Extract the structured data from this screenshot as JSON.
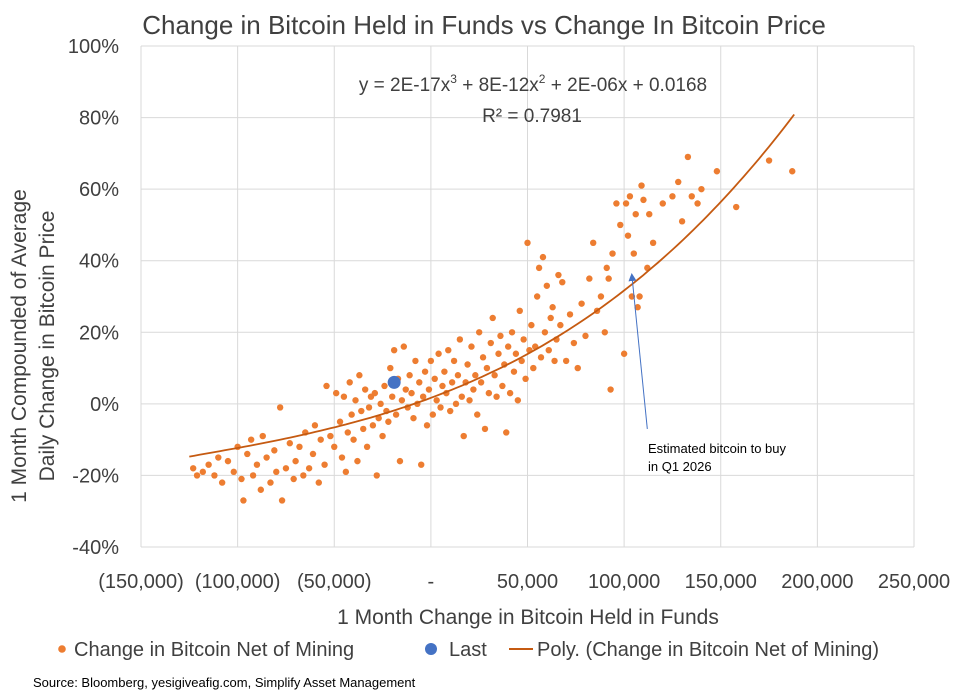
{
  "chart_data": {
    "type": "scatter",
    "title": "Change in Bitcoin Held in Funds vs Change In Bitcoin Price",
    "xlabel": "1 Month Change in Bitcoin Held in Funds",
    "ylabel_line1": "1 Month Compounded of Average",
    "ylabel_line2": "Daily Change in Bitcoin Price",
    "xlim": [
      -150000,
      250000
    ],
    "ylim": [
      -0.4,
      1.0
    ],
    "x_ticks": [
      {
        "value": -150000,
        "label": "(150,000)"
      },
      {
        "value": -100000,
        "label": "(100,000)"
      },
      {
        "value": -50000,
        "label": "(50,000)"
      },
      {
        "value": 0,
        "label": "-"
      },
      {
        "value": 50000,
        "label": "50,000"
      },
      {
        "value": 100000,
        "label": "100,000"
      },
      {
        "value": 150000,
        "label": "150,000"
      },
      {
        "value": 200000,
        "label": "200,000"
      },
      {
        "value": 250000,
        "label": "250,000"
      }
    ],
    "y_ticks": [
      {
        "value": -0.4,
        "label": "-40%"
      },
      {
        "value": -0.2,
        "label": "-20%"
      },
      {
        "value": 0.0,
        "label": "0%"
      },
      {
        "value": 0.2,
        "label": "20%"
      },
      {
        "value": 0.4,
        "label": "40%"
      },
      {
        "value": 0.6,
        "label": "60%"
      },
      {
        "value": 0.8,
        "label": "80%"
      },
      {
        "value": 1.0,
        "label": "100%"
      }
    ],
    "gridlines": true,
    "series": [
      {
        "name": "Change in Bitcoin Net of Mining",
        "color": "#ED7D31",
        "marker": "circle",
        "points": [
          [
            -123000,
            -0.18
          ],
          [
            -121000,
            -0.2
          ],
          [
            -118000,
            -0.19
          ],
          [
            -115000,
            -0.17
          ],
          [
            -112000,
            -0.2
          ],
          [
            -110000,
            -0.15
          ],
          [
            -108000,
            -0.22
          ],
          [
            -105000,
            -0.16
          ],
          [
            -102000,
            -0.19
          ],
          [
            -100000,
            -0.12
          ],
          [
            -98000,
            -0.21
          ],
          [
            -97000,
            -0.27
          ],
          [
            -95000,
            -0.14
          ],
          [
            -93000,
            -0.1
          ],
          [
            -92000,
            -0.2
          ],
          [
            -90000,
            -0.17
          ],
          [
            -88000,
            -0.24
          ],
          [
            -87000,
            -0.09
          ],
          [
            -85000,
            -0.15
          ],
          [
            -83000,
            -0.22
          ],
          [
            -81000,
            -0.13
          ],
          [
            -80000,
            -0.19
          ],
          [
            -78000,
            -0.01
          ],
          [
            -77000,
            -0.27
          ],
          [
            -75000,
            -0.18
          ],
          [
            -73000,
            -0.11
          ],
          [
            -71000,
            -0.21
          ],
          [
            -70000,
            -0.16
          ],
          [
            -68000,
            -0.12
          ],
          [
            -66000,
            -0.2
          ],
          [
            -65000,
            -0.08
          ],
          [
            -63000,
            -0.18
          ],
          [
            -61000,
            -0.14
          ],
          [
            -60000,
            -0.06
          ],
          [
            -58000,
            -0.22
          ],
          [
            -57000,
            -0.1
          ],
          [
            -55000,
            -0.17
          ],
          [
            -54000,
            0.05
          ],
          [
            -52000,
            -0.09
          ],
          [
            -50000,
            -0.12
          ],
          [
            -49000,
            0.03
          ],
          [
            -47000,
            -0.05
          ],
          [
            -46000,
            -0.15
          ],
          [
            -45000,
            0.02
          ],
          [
            -44000,
            -0.19
          ],
          [
            -43000,
            -0.08
          ],
          [
            -42000,
            0.06
          ],
          [
            -41000,
            -0.03
          ],
          [
            -40000,
            -0.1
          ],
          [
            -39000,
            0.01
          ],
          [
            -38000,
            -0.16
          ],
          [
            -37000,
            0.08
          ],
          [
            -36000,
            -0.02
          ],
          [
            -35000,
            -0.07
          ],
          [
            -34000,
            0.04
          ],
          [
            -33000,
            -0.12
          ],
          [
            -32000,
            -0.01
          ],
          [
            -31000,
            0.02
          ],
          [
            -30000,
            -0.06
          ],
          [
            -29000,
            0.03
          ],
          [
            -28000,
            -0.2
          ],
          [
            -27000,
            -0.04
          ],
          [
            -26000,
            0.0
          ],
          [
            -25000,
            -0.09
          ],
          [
            -24000,
            0.05
          ],
          [
            -23000,
            -0.02
          ],
          [
            -22000,
            -0.05
          ],
          [
            -21000,
            0.1
          ],
          [
            -20000,
            0.02
          ],
          [
            -19000,
            0.15
          ],
          [
            -18000,
            -0.03
          ],
          [
            -17000,
            0.07
          ],
          [
            -16000,
            -0.16
          ],
          [
            -15000,
            0.01
          ],
          [
            -14000,
            0.16
          ],
          [
            -13000,
            0.04
          ],
          [
            -12000,
            -0.01
          ],
          [
            -11000,
            0.08
          ],
          [
            -10000,
            0.03
          ],
          [
            -9000,
            -0.04
          ],
          [
            -8000,
            0.12
          ],
          [
            -7000,
            0.0
          ],
          [
            -6000,
            0.06
          ],
          [
            -5000,
            -0.17
          ],
          [
            -4000,
            0.02
          ],
          [
            -3000,
            0.09
          ],
          [
            -2000,
            -0.06
          ],
          [
            -1000,
            0.04
          ],
          [
            0,
            0.12
          ],
          [
            1000,
            -0.03
          ],
          [
            2000,
            0.07
          ],
          [
            3000,
            0.01
          ],
          [
            4000,
            0.14
          ],
          [
            5000,
            -0.01
          ],
          [
            6000,
            0.05
          ],
          [
            7000,
            0.09
          ],
          [
            8000,
            0.03
          ],
          [
            9000,
            0.15
          ],
          [
            10000,
            -0.02
          ],
          [
            11000,
            0.06
          ],
          [
            12000,
            0.12
          ],
          [
            13000,
            0.0
          ],
          [
            14000,
            0.08
          ],
          [
            15000,
            0.18
          ],
          [
            16000,
            0.02
          ],
          [
            17000,
            -0.09
          ],
          [
            18000,
            0.06
          ],
          [
            19000,
            0.11
          ],
          [
            20000,
            0.01
          ],
          [
            21000,
            0.16
          ],
          [
            22000,
            0.04
          ],
          [
            23000,
            0.08
          ],
          [
            24000,
            -0.03
          ],
          [
            25000,
            0.2
          ],
          [
            26000,
            0.06
          ],
          [
            27000,
            0.13
          ],
          [
            28000,
            -0.07
          ],
          [
            29000,
            0.1
          ],
          [
            30000,
            0.03
          ],
          [
            31000,
            0.17
          ],
          [
            32000,
            0.24
          ],
          [
            33000,
            0.08
          ],
          [
            34000,
            0.02
          ],
          [
            35000,
            0.14
          ],
          [
            36000,
            0.19
          ],
          [
            37000,
            0.05
          ],
          [
            38000,
            0.11
          ],
          [
            39000,
            -0.08
          ],
          [
            40000,
            0.16
          ],
          [
            41000,
            0.03
          ],
          [
            42000,
            0.2
          ],
          [
            43000,
            0.09
          ],
          [
            44000,
            0.14
          ],
          [
            45000,
            0.01
          ],
          [
            46000,
            0.26
          ],
          [
            47000,
            0.12
          ],
          [
            48000,
            0.18
          ],
          [
            49000,
            0.07
          ],
          [
            50000,
            0.45
          ],
          [
            51000,
            0.15
          ],
          [
            52000,
            0.22
          ],
          [
            53000,
            0.1
          ],
          [
            54000,
            0.16
          ],
          [
            55000,
            0.3
          ],
          [
            56000,
            0.38
          ],
          [
            57000,
            0.13
          ],
          [
            58000,
            0.41
          ],
          [
            59000,
            0.2
          ],
          [
            60000,
            0.33
          ],
          [
            61000,
            0.15
          ],
          [
            62000,
            0.24
          ],
          [
            63000,
            0.27
          ],
          [
            64000,
            0.12
          ],
          [
            65000,
            0.18
          ],
          [
            66000,
            0.36
          ],
          [
            67000,
            0.22
          ],
          [
            68000,
            0.34
          ],
          [
            70000,
            0.12
          ],
          [
            72000,
            0.25
          ],
          [
            74000,
            0.17
          ],
          [
            76000,
            0.1
          ],
          [
            78000,
            0.28
          ],
          [
            80000,
            0.19
          ],
          [
            82000,
            0.35
          ],
          [
            84000,
            0.45
          ],
          [
            86000,
            0.26
          ],
          [
            88000,
            0.3
          ],
          [
            90000,
            0.2
          ],
          [
            91000,
            0.38
          ],
          [
            92000,
            0.35
          ],
          [
            93000,
            0.04
          ],
          [
            94000,
            0.42
          ],
          [
            96000,
            0.56
          ],
          [
            98000,
            0.5
          ],
          [
            100000,
            0.14
          ],
          [
            101000,
            0.56
          ],
          [
            102000,
            0.47
          ],
          [
            103000,
            0.58
          ],
          [
            104000,
            0.3
          ],
          [
            105000,
            0.42
          ],
          [
            106000,
            0.53
          ],
          [
            107000,
            0.27
          ],
          [
            108000,
            0.3
          ],
          [
            109000,
            0.61
          ],
          [
            110000,
            0.57
          ],
          [
            112000,
            0.38
          ],
          [
            113000,
            0.53
          ],
          [
            115000,
            0.45
          ],
          [
            120000,
            0.56
          ],
          [
            125000,
            0.58
          ],
          [
            128000,
            0.62
          ],
          [
            130000,
            0.51
          ],
          [
            133000,
            0.69
          ],
          [
            135000,
            0.58
          ],
          [
            138000,
            0.56
          ],
          [
            140000,
            0.6
          ],
          [
            148000,
            0.65
          ],
          [
            158000,
            0.55
          ],
          [
            175000,
            0.68
          ],
          [
            187000,
            0.65
          ]
        ]
      },
      {
        "name": "Last",
        "color": "#4472C4",
        "marker": "circle",
        "points": [
          [
            -19000,
            0.06
          ]
        ]
      },
      {
        "name": "Poly. (Change in Bitcoin Net of Mining)",
        "color": "#C55A11",
        "kind": "trendline",
        "coefficients": {
          "a3": 2e-17,
          "a2": 8e-12,
          "a1": 2e-06,
          "a0": 0.0168
        },
        "x_range": [
          -125000,
          188000
        ]
      }
    ],
    "equation": {
      "prefix": "y = 2E-17x",
      "sup1": "3",
      "middle": " + 8E-12x",
      "sup2": "2",
      "suffix": " + 2E-06x + 0.0168"
    },
    "r_squared": "R² = 0.7981",
    "annotation": {
      "line1": "Estimated bitcoin to buy",
      "line2": "in Q1 2026",
      "arrow_from": [
        112000,
        -0.07
      ],
      "arrow_to": [
        104000,
        0.36
      ]
    },
    "legend": {
      "placement": "bottom",
      "items": [
        {
          "label": "Change in Bitcoin Net of Mining",
          "color": "#ED7D31",
          "symbol": "dot-small"
        },
        {
          "label": "Last",
          "color": "#4472C4",
          "symbol": "dot-large"
        },
        {
          "label": "Poly. (Change in Bitcoin Net of Mining)",
          "color": "#C55A11",
          "symbol": "line"
        }
      ]
    },
    "source": "Source: Bloomberg, yesigiveafig.com, Simplify Asset Management"
  }
}
